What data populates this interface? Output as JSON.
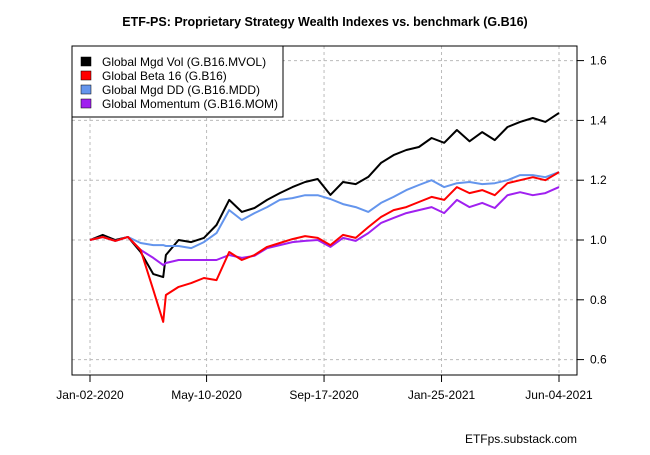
{
  "chart_data": {
    "type": "line",
    "title": "ETF-PS: Proprietary Strategy Wealth Indexes vs. benchmark (G.B16)",
    "xlabel": "",
    "ylabel": "",
    "source": "ETFps.substack.com",
    "ylim": [
      0.55,
      1.65
    ],
    "xlim": [
      "2020-01-02",
      "2021-06-04"
    ],
    "y_ticks": [
      "0.6",
      "0.8",
      "1.0",
      "1.2",
      "1.4",
      "1.6"
    ],
    "y_tick_values": [
      0.6,
      0.8,
      1.0,
      1.2,
      1.4,
      1.6
    ],
    "y_axis_side": "right",
    "x_ticks": [
      "Jan-02-2020",
      "May-10-2020",
      "Sep-17-2020",
      "Jan-25-2021",
      "Jun-04-2021"
    ],
    "x_tick_dates": [
      "2020-01-02",
      "2020-05-10",
      "2020-09-17",
      "2021-01-25",
      "2021-06-04"
    ],
    "grid": true,
    "legend_position": "top-left",
    "x": [
      "2020-01-02",
      "2020-01-16",
      "2020-01-30",
      "2020-02-13",
      "2020-02-27",
      "2020-03-12",
      "2020-03-23",
      "2020-03-26",
      "2020-04-09",
      "2020-04-23",
      "2020-05-07",
      "2020-05-21",
      "2020-06-04",
      "2020-06-18",
      "2020-07-02",
      "2020-07-16",
      "2020-07-30",
      "2020-08-13",
      "2020-08-27",
      "2020-09-10",
      "2020-09-24",
      "2020-10-08",
      "2020-10-22",
      "2020-11-05",
      "2020-11-19",
      "2020-12-03",
      "2020-12-17",
      "2020-12-31",
      "2021-01-14",
      "2021-01-28",
      "2021-02-11",
      "2021-02-25",
      "2021-03-11",
      "2021-03-25",
      "2021-04-08",
      "2021-04-22",
      "2021-05-06",
      "2021-05-20",
      "2021-06-04"
    ],
    "series": [
      {
        "name": "Global Mgd Vol (G.B16.MVOL)",
        "color": "#000000",
        "values": [
          1.0,
          1.017,
          1.0,
          1.01,
          0.96,
          0.886,
          0.876,
          0.95,
          1.0,
          0.993,
          1.007,
          1.05,
          1.134,
          1.094,
          1.107,
          1.134,
          1.157,
          1.177,
          1.194,
          1.204,
          1.151,
          1.194,
          1.187,
          1.211,
          1.258,
          1.284,
          1.301,
          1.311,
          1.341,
          1.325,
          1.368,
          1.33,
          1.361,
          1.334,
          1.378,
          1.395,
          1.408,
          1.395,
          1.425
        ]
      },
      {
        "name": "Global Momentum (G.B16.MOM)",
        "color": "#a020f0",
        "values": [
          1.0,
          1.01,
          0.997,
          1.01,
          0.967,
          0.94,
          0.916,
          0.923,
          0.933,
          0.933,
          0.933,
          0.933,
          0.95,
          0.94,
          0.947,
          0.973,
          0.983,
          0.993,
          0.997,
          1.0,
          0.977,
          1.007,
          0.997,
          1.023,
          1.057,
          1.074,
          1.09,
          1.1,
          1.11,
          1.09,
          1.134,
          1.11,
          1.124,
          1.107,
          1.15,
          1.16,
          1.15,
          1.157,
          1.177
        ]
      },
      {
        "name": "Global Mgd DD (G.B16.MDD)",
        "color": "#6495ed",
        "values": [
          1.0,
          1.01,
          0.997,
          1.01,
          0.99,
          0.983,
          0.983,
          0.98,
          0.98,
          0.973,
          0.993,
          1.023,
          1.1,
          1.067,
          1.09,
          1.11,
          1.134,
          1.14,
          1.15,
          1.15,
          1.137,
          1.12,
          1.11,
          1.094,
          1.124,
          1.144,
          1.167,
          1.184,
          1.2,
          1.177,
          1.19,
          1.194,
          1.187,
          1.19,
          1.2,
          1.217,
          1.217,
          1.21,
          1.227
        ]
      },
      {
        "name": "Global Beta 16 (G.B16)",
        "color": "#ff0000",
        "values": [
          1.0,
          1.01,
          0.997,
          1.01,
          0.967,
          0.833,
          0.726,
          0.816,
          0.843,
          0.856,
          0.873,
          0.866,
          0.96,
          0.933,
          0.95,
          0.977,
          0.99,
          1.003,
          1.013,
          1.007,
          0.983,
          1.017,
          1.007,
          1.043,
          1.077,
          1.1,
          1.11,
          1.127,
          1.144,
          1.134,
          1.177,
          1.157,
          1.167,
          1.15,
          1.19,
          1.2,
          1.21,
          1.2,
          1.227
        ]
      }
    ],
    "legend": [
      {
        "label": "Global Mgd Vol (G.B16.MVOL)",
        "color": "#000000"
      },
      {
        "label": "Global Beta 16 (G.B16)",
        "color": "#ff0000"
      },
      {
        "label": "Global Mgd DD (G.B16.MDD)",
        "color": "#6495ed"
      },
      {
        "label": "Global Momentum (G.B16.MOM)",
        "color": "#a020f0"
      }
    ]
  }
}
